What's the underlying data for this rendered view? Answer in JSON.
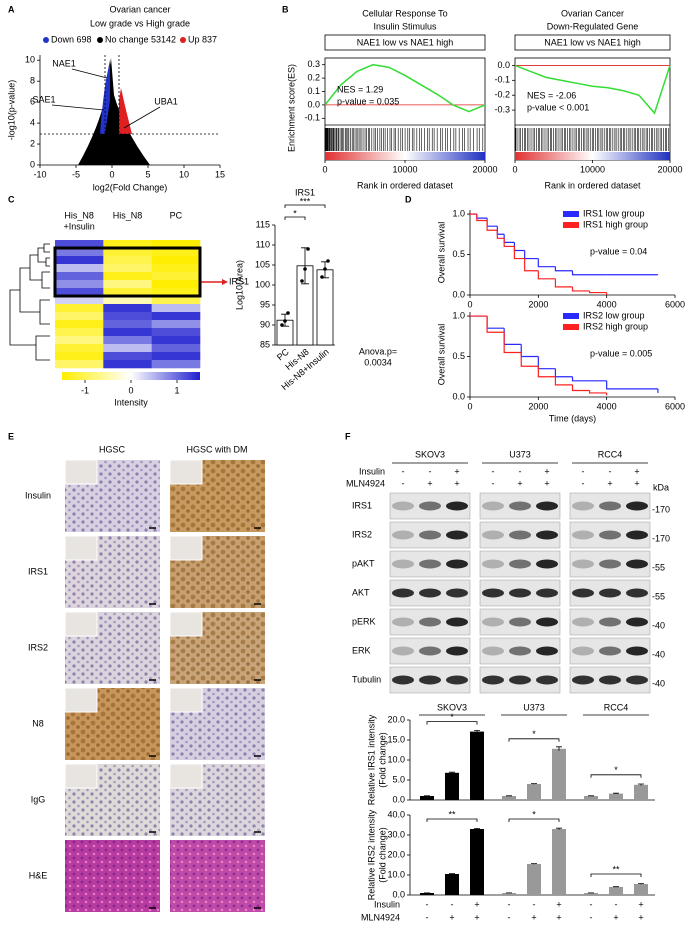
{
  "panel_labels": [
    "A",
    "B",
    "C",
    "D",
    "E",
    "F"
  ],
  "chart_data": [
    {
      "type": "scatter",
      "title": "Ovarian cancer",
      "subtitle": "Low grade vs High grade",
      "legend": [
        {
          "name": "Down 698",
          "color": "#2233cc"
        },
        {
          "name": "No change 53142",
          "color": "#000000"
        },
        {
          "name": "Up 837",
          "color": "#e02020"
        }
      ],
      "annotations": [
        "NAE1",
        "SAE1",
        "UBA1"
      ],
      "xlabel": "log2(Fold Change)",
      "ylabel": "-log10(p-value)",
      "xlim": [
        -10,
        15
      ],
      "ylim": [
        0,
        10.5
      ],
      "xticks": [
        -10,
        -5,
        0,
        5,
        10,
        15
      ],
      "yticks": [
        0,
        2,
        4,
        6,
        8,
        10
      ]
    },
    {
      "type": "line",
      "title": [
        "Cellular Response To",
        "Insulin Stimulus"
      ],
      "subtitle": "NAE1 low vs NAE1 high",
      "annotations": [
        "NES = 1.29",
        "p-value = 0.035"
      ],
      "xlabel": "Rank in ordered dataset",
      "ylabel": "Enrichment score(ES)",
      "x": [
        0,
        2000,
        4000,
        6000,
        8000,
        10000,
        12000,
        14000,
        16000,
        18000,
        20000
      ],
      "values": [
        0,
        0.15,
        0.25,
        0.3,
        0.28,
        0.22,
        0.15,
        0.08,
        0.0,
        -0.05,
        0
      ],
      "color": "#33dd33",
      "xlim": [
        0,
        20000
      ],
      "ylim": [
        -0.15,
        0.35
      ],
      "xticks": [
        0,
        10000,
        20000
      ],
      "yticks": [
        -0.1,
        {
          "value": 0,
          "label": "0.0"
        },
        0.1,
        0.2,
        0.3
      ]
    },
    {
      "type": "line",
      "title": [
        "Ovarian Cancer",
        "Down-Regulated Gene"
      ],
      "subtitle": "NAE1 low vs NAE1 high",
      "annotations": [
        "NES = -2.06",
        "p-value < 0.001"
      ],
      "xlabel": "Rank in ordered dataset",
      "x": [
        0,
        2000,
        4000,
        6000,
        8000,
        10000,
        12000,
        14000,
        16000,
        18000,
        20000
      ],
      "values": [
        0,
        -0.04,
        -0.08,
        -0.1,
        -0.12,
        -0.14,
        -0.15,
        -0.17,
        -0.2,
        -0.32,
        0
      ],
      "color": "#33dd33",
      "xlim": [
        0,
        20000
      ],
      "ylim": [
        -0.4,
        0.05
      ],
      "xticks": [
        0,
        10000,
        20000
      ],
      "yticks": [
        -0.3,
        -0.2,
        -0.1,
        {
          "value": 0,
          "label": "0.0"
        }
      ]
    },
    {
      "type": "bar",
      "title": "IRS1",
      "ylabel": "Log10(Area)",
      "categories": [
        "PC",
        "His-N8",
        "His-N8+Insulin"
      ],
      "values": [
        91.2,
        104.8,
        103.8
      ],
      "errors": [
        1.5,
        4.5,
        2
      ],
      "points": [
        [
          90,
          91,
          93
        ],
        [
          101,
          104,
          109
        ],
        [
          102,
          104,
          106
        ]
      ],
      "color": "#ffffff",
      "ylim": [
        85,
        115
      ],
      "yticks": [
        85,
        90,
        95,
        100,
        105,
        110,
        115
      ],
      "significance": [
        {
          "label": "*",
          "from": 0,
          "to": 1
        },
        {
          "label": "***",
          "from": 0,
          "to": 2
        }
      ],
      "annotation": [
        "Anova.p=",
        "0.0034"
      ]
    },
    {
      "type": "step",
      "ylabel": "Overall survival",
      "annotation": "p-value = 0.04",
      "series": [
        {
          "name": "IRS1 low group",
          "color": "#2a2aff",
          "x": [
            0,
            200,
            500,
            800,
            1000,
            1300,
            1600,
            2000,
            2500,
            3000,
            4000,
            5500
          ],
          "values": [
            1,
            0.95,
            0.85,
            0.75,
            0.65,
            0.55,
            0.45,
            0.35,
            0.3,
            0.25,
            0.25,
            0.25
          ]
        },
        {
          "name": "IRS1 high group",
          "color": "#ff2020",
          "x": [
            0,
            200,
            500,
            800,
            1000,
            1300,
            1600,
            2000,
            2500,
            3000,
            3500,
            4000
          ],
          "values": [
            1,
            0.92,
            0.8,
            0.7,
            0.6,
            0.45,
            0.3,
            0.2,
            0.1,
            0.05,
            0.03,
            0
          ]
        }
      ],
      "xlim": [
        0,
        6000
      ],
      "ylim": [
        0,
        1.05
      ],
      "xticks": [
        0,
        2000,
        4000,
        6000
      ],
      "yticks": [
        {
          "value": 0,
          "label": "0.0"
        },
        0.5,
        {
          "value": 1,
          "label": "1.0"
        }
      ]
    },
    {
      "type": "step",
      "ylabel": "Overall survival",
      "xlabel": "Time (days)",
      "annotation": "p-value = 0.005",
      "series": [
        {
          "name": "IRS2 low group",
          "color": "#2a2aff",
          "x": [
            0,
            500,
            1000,
            1500,
            2000,
            2500,
            3000,
            4000,
            5500
          ],
          "values": [
            1,
            0.85,
            0.65,
            0.5,
            0.35,
            0.25,
            0.2,
            0.1,
            0.05
          ]
        },
        {
          "name": "IRS2 high group",
          "color": "#ff2020",
          "x": [
            0,
            500,
            1000,
            1500,
            2000,
            2500,
            3000,
            3500,
            4000
          ],
          "values": [
            1,
            0.8,
            0.55,
            0.38,
            0.25,
            0.15,
            0.08,
            0.05,
            0.02
          ]
        }
      ],
      "xlim": [
        0,
        6000
      ],
      "ylim": [
        0,
        1.05
      ],
      "xticks": [
        0,
        2000,
        4000,
        6000
      ],
      "yticks": [
        {
          "value": 0,
          "label": "0.0"
        },
        0.5,
        {
          "value": 1,
          "label": "1.0"
        }
      ]
    },
    {
      "type": "grouped_bar",
      "ylabel": [
        "Relative IRS1 intensity",
        "(Fold change)"
      ],
      "groups": [
        {
          "name": "SKOV3",
          "color": "#000000",
          "values": [
            1,
            6.8,
            17.1
          ],
          "errors": [
            0.05,
            0.15,
            0.3
          ],
          "significance": "*"
        },
        {
          "name": "U373",
          "color": "#999999",
          "values": [
            1,
            4,
            12.8
          ],
          "errors": [
            0.05,
            0.1,
            0.5
          ],
          "significance": "*"
        },
        {
          "name": "RCC4",
          "color": "#999999",
          "values": [
            1,
            1.6,
            3.8
          ],
          "errors": [
            0.05,
            0.1,
            0.2
          ],
          "significance": "*"
        }
      ],
      "ylim": [
        0,
        20
      ],
      "yticks": [
        {
          "value": 0,
          "label": "0.0"
        },
        {
          "value": 5,
          "label": "5.0"
        },
        {
          "value": 10,
          "label": "10.0"
        },
        {
          "value": 15,
          "label": "15.0"
        },
        {
          "value": 20,
          "label": "20.0"
        }
      ]
    },
    {
      "type": "grouped_bar",
      "ylabel": [
        "Relative IRS2 intensity",
        "(Fold change)"
      ],
      "groups": [
        {
          "color": "#000000",
          "values": [
            1,
            10.5,
            33
          ],
          "errors": [
            0.05,
            0.2,
            0.3
          ],
          "significance": "**"
        },
        {
          "color": "#999999",
          "values": [
            1,
            15.5,
            33
          ],
          "errors": [
            0.05,
            0.2,
            0.4
          ],
          "significance": "*"
        },
        {
          "color": "#999999",
          "values": [
            1,
            4,
            5.5
          ],
          "errors": [
            0.05,
            0.15,
            0.2
          ],
          "significance": "**"
        }
      ],
      "ylim": [
        0,
        40
      ],
      "yticks": [
        {
          "value": 0,
          "label": "0.0"
        },
        {
          "value": 10,
          "label": "10.0"
        },
        {
          "value": 20,
          "label": "20.0"
        },
        {
          "value": 30,
          "label": "30.0"
        },
        {
          "value": 40,
          "label": "40.0"
        }
      ]
    }
  ],
  "heatmap": {
    "columns": [
      [
        "His_N8",
        "+Insulin"
      ],
      [
        "His_N8"
      ],
      [
        "PC"
      ]
    ],
    "highlight": "IRS1",
    "values": [
      [
        0.8,
        -0.9,
        -1
      ],
      [
        0.6,
        -0.8,
        -0.9
      ],
      [
        0.9,
        -0.7,
        -1
      ],
      [
        0.3,
        -0.6,
        -0.9
      ],
      [
        0.7,
        -0.9,
        -0.8
      ],
      [
        0.5,
        -0.5,
        -1
      ],
      [
        0.8,
        -0.8,
        -0.9
      ],
      [
        0.2,
        -0.3,
        -0.7
      ],
      [
        -0.8,
        0.9,
        0.3
      ],
      [
        -0.6,
        0.8,
        0.9
      ],
      [
        -0.9,
        0.7,
        0.5
      ],
      [
        -0.7,
        0.9,
        0.8
      ],
      [
        -0.5,
        0.6,
        0.9
      ],
      [
        -0.8,
        0.3,
        0.7
      ],
      [
        -0.9,
        0.8,
        0.9
      ],
      [
        -0.6,
        0.9,
        0.6
      ]
    ],
    "colorbar": {
      "lim": [
        -1.5,
        1.5
      ],
      "ticks": [
        -1,
        0,
        1
      ],
      "label": "Intensity"
    }
  },
  "ihc": {
    "columns": [
      "HGSC",
      "HGSC with DM"
    ],
    "rows": [
      "Insulin",
      "IRS1",
      "IRS2",
      "N8",
      "IgG",
      "H&E"
    ]
  },
  "blot": {
    "cell_lines": [
      "SKOV3",
      "U373",
      "RCC4"
    ],
    "conditions": [
      {
        "name": "Insulin",
        "signs": [
          "-",
          "-",
          "+"
        ]
      },
      {
        "name": "MLN4924",
        "signs": [
          "-",
          "+",
          "+"
        ]
      }
    ],
    "bands": [
      "IRS1",
      "IRS2",
      "pAKT",
      "AKT",
      "pERK",
      "ERK",
      "Tubulin"
    ],
    "kda_label": "kDa",
    "markers": [
      "-170",
      "-170",
      "-55",
      "-55",
      "-40",
      "-40",
      "-40"
    ]
  }
}
